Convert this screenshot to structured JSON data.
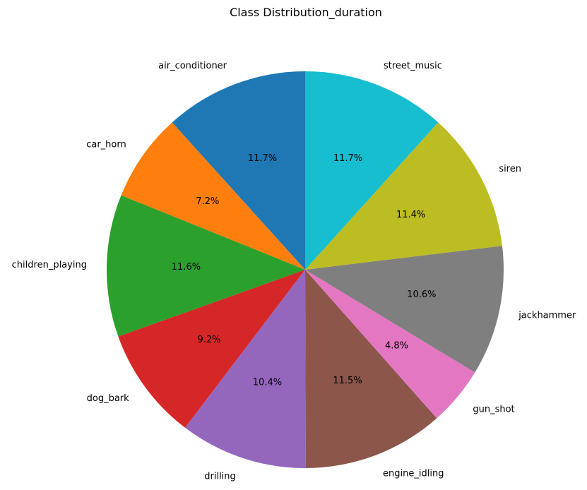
{
  "chart_data": {
    "type": "pie",
    "title": "Class Distribution_duration",
    "start_angle_deg": 90,
    "direction": "counterclockwise",
    "slices": [
      {
        "label": "air_conditioner",
        "value": 11.7,
        "pct_text": "11.7%",
        "color": "#1f77b4"
      },
      {
        "label": "car_horn",
        "value": 7.2,
        "pct_text": "7.2%",
        "color": "#ff7f0e"
      },
      {
        "label": "children_playing",
        "value": 11.6,
        "pct_text": "11.6%",
        "color": "#2ca02c"
      },
      {
        "label": "dog_bark",
        "value": 9.2,
        "pct_text": "9.2%",
        "color": "#d62728"
      },
      {
        "label": "drilling",
        "value": 10.4,
        "pct_text": "10.4%",
        "color": "#9467bd"
      },
      {
        "label": "engine_idling",
        "value": 11.5,
        "pct_text": "11.5%",
        "color": "#8c564b"
      },
      {
        "label": "gun_shot",
        "value": 4.8,
        "pct_text": "4.8%",
        "color": "#e377c2"
      },
      {
        "label": "jackhammer",
        "value": 10.6,
        "pct_text": "10.6%",
        "color": "#7f7f7f"
      },
      {
        "label": "siren",
        "value": 11.4,
        "pct_text": "11.4%",
        "color": "#bcbd22"
      },
      {
        "label": "street_music",
        "value": 11.7,
        "pct_text": "11.7%",
        "color": "#17becf"
      }
    ]
  }
}
